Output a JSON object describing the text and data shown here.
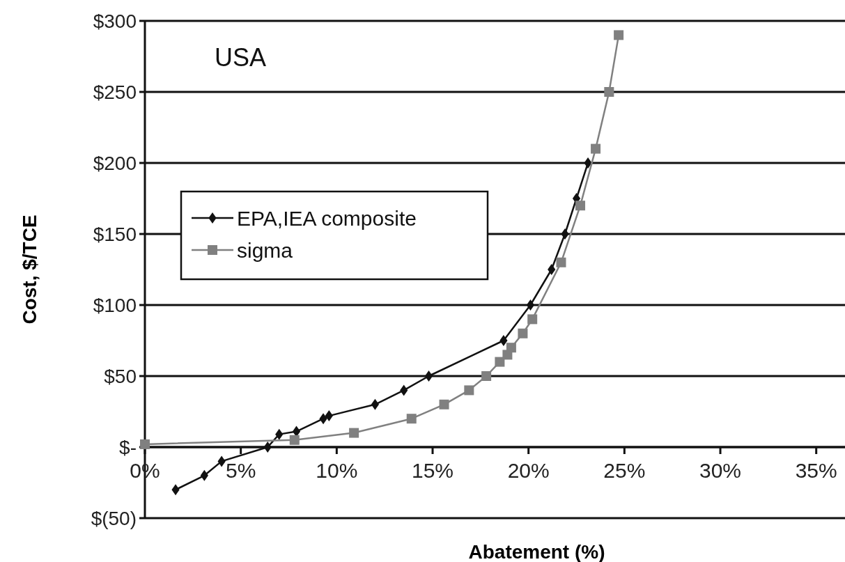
{
  "chart_data": {
    "type": "line",
    "xlabel": "Abatement (%)",
    "ylabel": "Cost, $/TCE",
    "annotations": [
      "USA"
    ],
    "xlim": [
      0,
      36.5
    ],
    "xticks": [
      {
        "value": 0,
        "label": "0%"
      },
      {
        "value": 5,
        "label": "5%"
      },
      {
        "value": 10,
        "label": "10%"
      },
      {
        "value": 15,
        "label": "15%"
      },
      {
        "value": 20,
        "label": "20%"
      },
      {
        "value": 25,
        "label": "25%"
      },
      {
        "value": 30,
        "label": "30%"
      },
      {
        "value": 35,
        "label": "35%"
      }
    ],
    "ylim": [
      -50,
      300
    ],
    "yticks": [
      {
        "value": -50,
        "label": "$(50)"
      },
      {
        "value": 0,
        "label": "$-"
      },
      {
        "value": 50,
        "label": "$50"
      },
      {
        "value": 100,
        "label": "$100"
      },
      {
        "value": 150,
        "label": "$150"
      },
      {
        "value": 200,
        "label": "$200"
      },
      {
        "value": 250,
        "label": "$250"
      },
      {
        "value": 300,
        "label": "$300"
      }
    ],
    "grid": "y",
    "legend": "left",
    "series": [
      {
        "name": "EPA,IEA composite",
        "color": "#111111",
        "marker": "diamond",
        "x": [
          1.6,
          3.1,
          4.0,
          6.4,
          7.0,
          7.9,
          9.3,
          9.6,
          12.0,
          13.5,
          14.8,
          18.7,
          20.1,
          21.2,
          21.9,
          22.5,
          23.1
        ],
        "values": [
          -30,
          -20,
          -10,
          0,
          9,
          11,
          20,
          22,
          30,
          40,
          50,
          75,
          100,
          125,
          150,
          175,
          200
        ]
      },
      {
        "name": "sigma",
        "color": "#808080",
        "marker": "square",
        "x": [
          0.0,
          7.8,
          10.9,
          13.9,
          15.6,
          16.9,
          17.8,
          18.5,
          18.9,
          19.1,
          19.7,
          20.2,
          21.7,
          22.7,
          23.5,
          24.2,
          24.7
        ],
        "values": [
          2,
          5,
          10,
          20,
          30,
          40,
          50,
          60,
          65,
          70,
          80,
          90,
          130,
          170,
          210,
          250,
          290
        ]
      }
    ]
  }
}
